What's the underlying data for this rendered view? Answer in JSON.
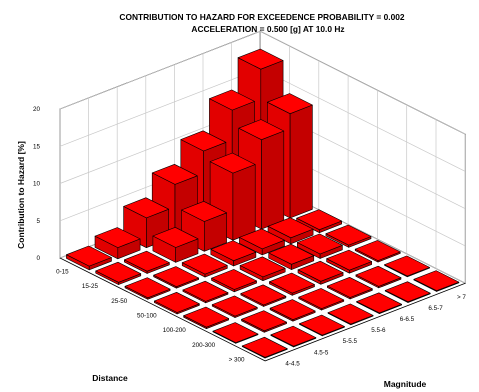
{
  "chart_data": {
    "type": "bar3d",
    "title_line1": "CONTRIBUTION TO HAZARD FOR EXCEEDENCE PROBABILITY = 0.002",
    "title_line2": "ACCELERATION = 0.500 [g] AT 10.0 Hz",
    "xlabel": "Distance",
    "ylabel": "Magnitude",
    "zlabel": "Contribution to Hazard [%]",
    "distance_bins": [
      "0-15",
      "15-25",
      "25-50",
      "50-100",
      "100-200",
      "200-300",
      "> 300"
    ],
    "magnitude_bins": [
      "4-4.5",
      "4.5-5",
      "5-5.5",
      "5.5-6",
      "6-6.5",
      "6.5-7",
      "> 7"
    ],
    "zlim": [
      0,
      20
    ],
    "zticks": [
      0,
      5,
      10,
      15,
      20
    ],
    "bar_color": "#ff0000",
    "values": [
      [
        0.5,
        1.5,
        4,
        7,
        10,
        14,
        18
      ],
      [
        0.3,
        0.3,
        2,
        4,
        9,
        12,
        14
      ],
      [
        0.2,
        0.2,
        0.4,
        0.7,
        0.8,
        0.8,
        0.4
      ],
      [
        0.2,
        0.2,
        0.3,
        0.5,
        0.7,
        0.6,
        0.3
      ],
      [
        0.2,
        0.2,
        0.2,
        0.3,
        0.4,
        0.4,
        0.2
      ],
      [
        0.1,
        0.2,
        0.2,
        0.2,
        0.2,
        0.2,
        0.1
      ],
      [
        0.1,
        0.1,
        0.1,
        0.1,
        0.1,
        0.1,
        0.1
      ]
    ]
  }
}
